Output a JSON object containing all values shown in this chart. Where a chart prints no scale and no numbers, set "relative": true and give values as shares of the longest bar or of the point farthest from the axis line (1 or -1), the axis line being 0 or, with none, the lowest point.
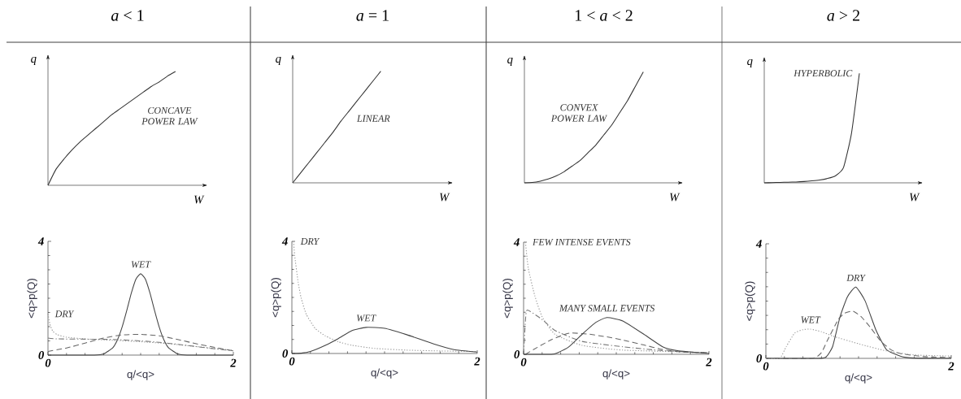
{
  "chart_data": [
    {
      "type": "line",
      "title": "*a* < 1",
      "xlabel": "W",
      "ylabel": "q",
      "relative": true,
      "color": "#333333",
      "annotations": [
        "CONCAVE POWER LAW"
      ],
      "categories": [
        null,
        null,
        null,
        null,
        null,
        null,
        null,
        null,
        null,
        null,
        null,
        null,
        null,
        null,
        null,
        null,
        null,
        null,
        null,
        null,
        null
      ],
      "values": [
        0,
        0.14,
        0.23,
        0.31,
        0.38,
        0.44,
        0.5,
        0.56,
        0.62,
        0.67,
        0.72,
        0.77,
        0.82,
        0.87,
        0.91,
        0.96,
        1,
        null,
        null,
        null,
        null
      ]
    },
    {
      "type": "line",
      "title": "*a* = 1",
      "xlabel": "W",
      "ylabel": "q",
      "relative": true,
      "color": "#333333",
      "annotations": [
        "LINEAR"
      ],
      "categories": [
        null,
        null,
        null,
        null,
        null,
        null,
        null,
        null,
        null,
        null,
        null,
        null,
        null,
        null,
        null,
        null,
        null,
        null,
        null,
        null,
        null
      ],
      "values": [
        0,
        0.09,
        0.18,
        0.27,
        0.36,
        0.45,
        0.55,
        0.64,
        0.73,
        0.82,
        0.91,
        1,
        null,
        null,
        null,
        null,
        null,
        null,
        null,
        null,
        null
      ]
    },
    {
      "type": "line",
      "title": "1 < *a* < 2",
      "xlabel": "W",
      "ylabel": "q",
      "relative": true,
      "color": "#333333",
      "annotations": [
        "CONVEX POWER LAW"
      ],
      "categories": [
        null,
        null,
        null,
        null,
        null,
        null,
        null,
        null,
        null,
        null,
        null,
        null,
        null,
        null,
        null,
        null,
        null,
        null,
        null,
        null,
        null
      ],
      "values": [
        0,
        0.003,
        0.015,
        0.034,
        0.062,
        0.1,
        0.15,
        0.2,
        0.27,
        0.34,
        0.43,
        0.52,
        0.63,
        0.74,
        0.87,
        1,
        null,
        null,
        null,
        null,
        null
      ]
    },
    {
      "type": "line",
      "title": "*a* > 2",
      "xlabel": "W",
      "ylabel": "q",
      "relative": true,
      "color": "#333333",
      "annotations": [
        "HYPERBOLIC"
      ],
      "categories": [
        null,
        null,
        null,
        null,
        null,
        null,
        null,
        null,
        null,
        null,
        null,
        null,
        null,
        null,
        null,
        null,
        null,
        null,
        null,
        null,
        null
      ],
      "values": [
        0,
        0.002,
        0.004,
        0.006,
        0.008,
        0.012,
        0.018,
        0.026,
        0.04,
        0.065,
        0.14,
        0.45,
        1,
        null,
        null,
        null,
        null,
        null,
        null,
        null,
        null
      ]
    },
    {
      "type": "line",
      "xlabel": "q/<q>",
      "ylabel": "<q>p(Q)",
      "xlim": [
        0,
        2
      ],
      "ylim": [
        0,
        4
      ],
      "xticks": [
        0,
        2
      ],
      "yticks": [
        0,
        4
      ],
      "series": [
        {
          "name": "WET",
          "color": "#444444",
          "line_style": "solid",
          "x": [
            0,
            0.5,
            0.6,
            0.7,
            0.75,
            0.8,
            0.85,
            0.9,
            0.95,
            1,
            1.05,
            1.1,
            1.15,
            1.2,
            1.25,
            1.3,
            1.4,
            1.5,
            2
          ],
          "values": [
            0,
            0,
            0.04,
            0.26,
            0.54,
            0.99,
            1.57,
            2.19,
            2.68,
            2.86,
            2.68,
            2.19,
            1.57,
            0.99,
            0.54,
            0.26,
            0.04,
            0,
            0
          ]
        },
        {
          "name": "DRY",
          "color": "#999999",
          "line_style": "dotted",
          "x": [
            0,
            0.02,
            0.05,
            0.1,
            0.2,
            0.4,
            0.7,
            1,
            1.3,
            1.6,
            2
          ],
          "values": [
            1.45,
            1.1,
            0.85,
            0.72,
            0.63,
            0.57,
            0.52,
            0.47,
            0.4,
            0.3,
            0.17
          ]
        },
        {
          "color": "#666666",
          "line_style": "dashed",
          "x": [
            0,
            0.2,
            0.4,
            0.6,
            0.8,
            1,
            1.2,
            1.4,
            1.6,
            1.8,
            2
          ],
          "values": [
            0.13,
            0.25,
            0.42,
            0.6,
            0.71,
            0.73,
            0.68,
            0.55,
            0.4,
            0.27,
            0.15
          ]
        },
        {
          "color": "#777777",
          "line_style": "dashdot",
          "x": [
            0,
            0.1,
            0.4,
            0.7,
            1,
            1.2,
            1.4,
            1.6,
            1.8,
            2
          ],
          "values": [
            0.6,
            0.57,
            0.56,
            0.55,
            0.5,
            0.45,
            0.38,
            0.3,
            0.22,
            0.15
          ]
        }
      ]
    },
    {
      "type": "line",
      "xlabel": "q/<q>",
      "ylabel": "<q>p(Q)",
      "xlim": [
        0,
        2
      ],
      "ylim": [
        0,
        4
      ],
      "xticks": [
        0,
        2
      ],
      "yticks": [
        0,
        4
      ],
      "series": [
        {
          "name": "DRY",
          "color": "#999999",
          "line_style": "dotted",
          "x": [
            0.018,
            0.03,
            0.067,
            0.1,
            0.155,
            0.25,
            0.36,
            0.5,
            0.65,
            0.9,
            1.24,
            1.6,
            2
          ],
          "values": [
            4,
            3.5,
            2.55,
            1.98,
            1.4,
            0.9,
            0.63,
            0.42,
            0.29,
            0.18,
            0.12,
            0.09,
            0.07
          ]
        },
        {
          "name": "WET",
          "color": "#444444",
          "line_style": "solid",
          "x": [
            0,
            0.1,
            0.2,
            0.36,
            0.5,
            0.65,
            0.8,
            1,
            1.24,
            1.53,
            1.75,
            2
          ],
          "values": [
            0,
            0.01,
            0.07,
            0.29,
            0.53,
            0.82,
            0.93,
            0.9,
            0.67,
            0.34,
            0.14,
            0.05
          ]
        }
      ]
    },
    {
      "type": "line",
      "xlabel": "q/<q>",
      "ylabel": "<q>p(Q)",
      "xlim": [
        0,
        2
      ],
      "ylim": [
        0,
        4
      ],
      "xticks": [
        0,
        2
      ],
      "yticks": [
        0,
        4
      ],
      "series": [
        {
          "name": "FEW INTENSE EVENTS",
          "color": "#999999",
          "line_style": "dotted",
          "x": [
            0.02,
            0.05,
            0.12,
            0.2,
            0.34,
            0.63,
            1.07,
            2
          ],
          "values": [
            4,
            3.08,
            2.1,
            1.34,
            0.71,
            0.32,
            0.15,
            0.06
          ]
        },
        {
          "color": "#777777",
          "line_style": "dashdot",
          "x": [
            0,
            0.02,
            0.04,
            0.2,
            0.34,
            0.63,
            1.07,
            1.5,
            2
          ],
          "values": [
            0,
            1.2,
            1.58,
            1.24,
            0.85,
            0.46,
            0.27,
            0.13,
            0.05
          ]
        },
        {
          "color": "#666666",
          "line_style": "dashed",
          "x": [
            0.02,
            0.15,
            0.3,
            0.45,
            0.52,
            0.7,
            0.9,
            1.07,
            1.3,
            1.5,
            1.7,
            2
          ],
          "values": [
            0,
            0.25,
            0.52,
            0.72,
            0.76,
            0.72,
            0.62,
            0.51,
            0.33,
            0.17,
            0.08,
            0.05
          ]
        },
        {
          "name": "MANY SMALL EVENTS",
          "color": "#444444",
          "line_style": "solid",
          "x": [
            0,
            0.3,
            0.37,
            0.49,
            0.63,
            0.78,
            0.9,
            1.07,
            1.3,
            1.5,
            1.66,
            2
          ],
          "values": [
            0,
            0,
            0.06,
            0.27,
            0.71,
            1.14,
            1.31,
            1.19,
            0.71,
            0.27,
            0.13,
            0.03
          ]
        }
      ]
    },
    {
      "type": "line",
      "xlabel": "q/<q>",
      "ylabel": "<q>p(Q)",
      "xlim": [
        0,
        2
      ],
      "ylim": [
        0,
        4
      ],
      "xticks": [
        0,
        2
      ],
      "yticks": [
        0,
        4
      ],
      "series": [
        {
          "name": "DRY",
          "color": "#444444",
          "line_style": "solid",
          "x": [
            0,
            0.57,
            0.65,
            0.72,
            0.8,
            0.88,
            0.97,
            1.07,
            1.19,
            1.3,
            1.45,
            1.6,
            2
          ],
          "values": [
            0,
            0,
            0.05,
            0.41,
            1.45,
            2.15,
            2.49,
            2.01,
            0.97,
            0.31,
            0.08,
            0.01,
            0
          ]
        },
        {
          "color": "#666666",
          "line_style": "dashed",
          "x": [
            0,
            0.5,
            0.6,
            0.66,
            0.78,
            0.85,
            0.94,
            1.03,
            1.13,
            1.24,
            1.35,
            1.45,
            1.7,
            2
          ],
          "values": [
            0,
            0,
            0.2,
            0.6,
            1.35,
            1.58,
            1.65,
            1.45,
            1.07,
            0.6,
            0.3,
            0.17,
            0.06,
            0.03
          ]
        },
        {
          "name": "WET",
          "color": "#999999",
          "line_style": "dotted",
          "x": [
            0,
            0.15,
            0.22,
            0.31,
            0.4,
            0.48,
            0.6,
            0.72,
            1.01,
            1.3,
            1.6,
            2
          ],
          "values": [
            0,
            0,
            0.41,
            0.88,
            1,
            1.02,
            0.93,
            0.78,
            0.5,
            0.26,
            0.12,
            0.08
          ]
        }
      ]
    }
  ]
}
